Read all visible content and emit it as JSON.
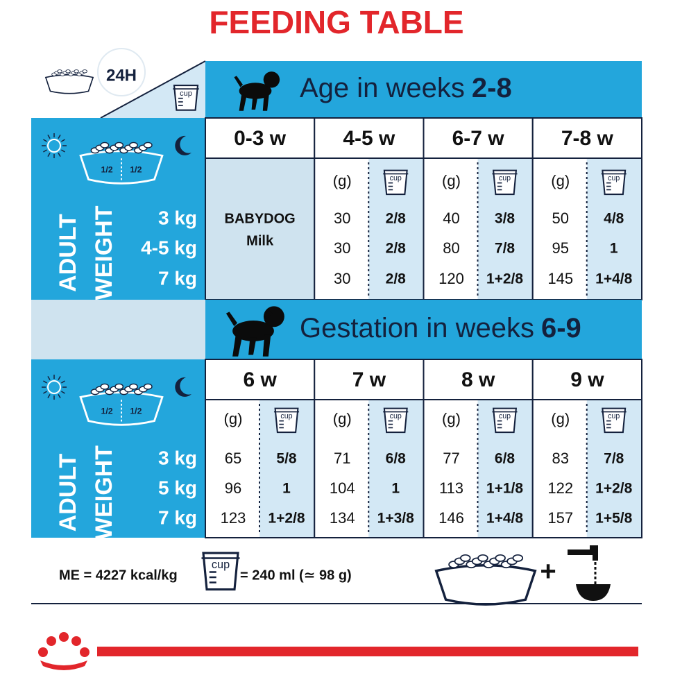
{
  "title": "FEEDING TABLE",
  "header": {
    "period": "24H"
  },
  "common": {
    "grams_label": "(g)",
    "cup_label": "cup",
    "half": "1/2",
    "weight_label": [
      "ADULT",
      "WEIGHT"
    ]
  },
  "sections": [
    {
      "heading": "Age in weeks",
      "heading_bold": "2-8",
      "weights": [
        "3 kg",
        "4-5 kg",
        "7 kg"
      ],
      "columns": [
        {
          "label": "0-3 w",
          "note": [
            "BABYDOG",
            "Milk"
          ]
        },
        {
          "label": "4-5 w",
          "grams": [
            30,
            30,
            30
          ],
          "cups": [
            "2/8",
            "2/8",
            "2/8"
          ]
        },
        {
          "label": "6-7 w",
          "grams": [
            40,
            80,
            120
          ],
          "cups": [
            "3/8",
            "7/8",
            "1+2/8"
          ]
        },
        {
          "label": "7-8 w",
          "grams": [
            50,
            95,
            145
          ],
          "cups": [
            "4/8",
            "1",
            "1+4/8"
          ]
        }
      ]
    },
    {
      "heading": "Gestation in weeks",
      "heading_bold": "6-9",
      "weights": [
        "3 kg",
        "5 kg",
        "7 kg"
      ],
      "columns": [
        {
          "label": "6 w",
          "grams": [
            65,
            96,
            123
          ],
          "cups": [
            "5/8",
            "1",
            "1+2/8"
          ]
        },
        {
          "label": "7 w",
          "grams": [
            71,
            104,
            134
          ],
          "cups": [
            "6/8",
            "1",
            "1+3/8"
          ]
        },
        {
          "label": "8 w",
          "grams": [
            77,
            113,
            146
          ],
          "cups": [
            "6/8",
            "1+1/8",
            "1+4/8"
          ]
        },
        {
          "label": "9 w",
          "grams": [
            83,
            122,
            157
          ],
          "cups": [
            "7/8",
            "1+2/8",
            "1+5/8"
          ]
        }
      ]
    }
  ],
  "footer": {
    "energy": "ME = 4227 kcal/kg",
    "cup_equivalence": "= 240 ml (≃ 98 g)",
    "plus": "+"
  }
}
